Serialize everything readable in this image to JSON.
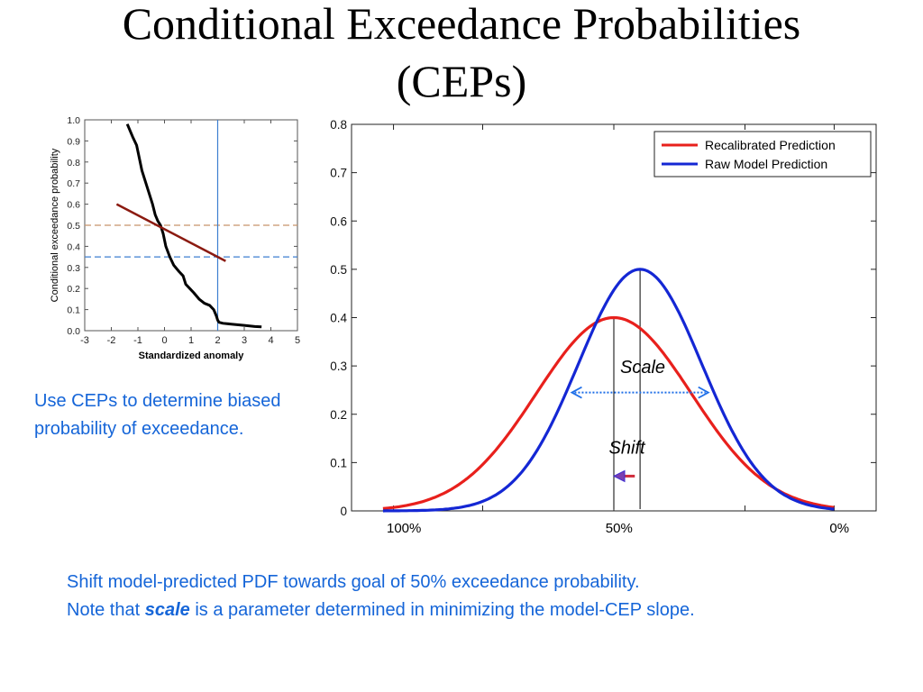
{
  "title": {
    "line1": "Conditional Exceedance Probabilities",
    "line2": "(CEPs)"
  },
  "captions": {
    "left": "Use CEPs to determine biased probability of exceedance.",
    "bottom_line1": "Shift model-predicted PDF towards goal of 50% exceedance probability.",
    "bottom_line2_prefix": "Note that ",
    "bottom_line2_emph": "scale",
    "bottom_line2_suffix": " is a parameter determined in minimizing the model-CEP slope."
  },
  "colors": {
    "title": "#000000",
    "caption": "#1565d8",
    "recalibrated": "#e8201c",
    "raw": "#1427d4",
    "cep_curve": "#000000",
    "regression": "#8b1a10",
    "hline_brown": "#c8956a",
    "hline_blue": "#3d7fd0",
    "vline_blue": "#3d7fd0"
  },
  "chart_data": [
    {
      "type": "line",
      "title": "",
      "xlabel": "Standardized anomaly",
      "ylabel": "Conditional exceedance probability",
      "xlim": [
        -3,
        5
      ],
      "ylim": [
        0,
        1
      ],
      "xticks": [
        -3,
        -2,
        -1,
        0,
        1,
        2,
        3,
        4,
        5
      ],
      "xtick_labels": [
        "-3",
        "-2",
        "-1",
        "0",
        "1",
        "2",
        "3",
        "4",
        "5"
      ],
      "yticks": [
        0,
        0.1,
        0.2,
        0.3,
        0.4,
        0.5,
        0.6,
        0.7,
        0.8,
        0.9,
        1.0
      ],
      "ytick_labels": [
        "0.0",
        "0.1",
        "0.2",
        "0.3",
        "0.4",
        "0.5",
        "0.6",
        "0.7",
        "0.8",
        "0.9",
        "1.0"
      ],
      "series": [
        {
          "role": "cep",
          "x": [
            -1.4,
            -1.2,
            -1.05,
            -0.95,
            -0.85,
            -0.75,
            -0.6,
            -0.45,
            -0.35,
            -0.25,
            -0.15,
            -0.05,
            0.05,
            0.2,
            0.35,
            0.55,
            0.7,
            0.8,
            0.95,
            1.1,
            1.3,
            1.5,
            1.7,
            1.85,
            1.95,
            2.0,
            2.05,
            2.2,
            2.6,
            3.0,
            3.4,
            3.65
          ],
          "y": [
            0.98,
            0.92,
            0.88,
            0.82,
            0.76,
            0.72,
            0.66,
            0.6,
            0.55,
            0.52,
            0.5,
            0.46,
            0.4,
            0.35,
            0.31,
            0.28,
            0.26,
            0.22,
            0.2,
            0.18,
            0.15,
            0.13,
            0.12,
            0.1,
            0.07,
            0.05,
            0.04,
            0.035,
            0.03,
            0.025,
            0.02,
            0.018
          ]
        },
        {
          "role": "regression",
          "x": [
            -1.8,
            2.3
          ],
          "y": [
            0.6,
            0.33
          ]
        }
      ],
      "hlines": [
        {
          "y": 0.5,
          "style": "dashed",
          "color": "hline_brown"
        },
        {
          "y": 0.35,
          "style": "dashed",
          "color": "hline_blue"
        }
      ],
      "vlines": [
        {
          "x": 2.0,
          "color": "vline_blue"
        }
      ]
    },
    {
      "type": "line",
      "title": "",
      "xlabel": "",
      "ylabel": "",
      "xlim": [
        0,
        100
      ],
      "ylim": [
        0,
        0.8
      ],
      "yticks": [
        0,
        0.1,
        0.2,
        0.3,
        0.4,
        0.5,
        0.6,
        0.7,
        0.8
      ],
      "ytick_labels": [
        "0",
        "0.1",
        "0.2",
        "0.3",
        "0.4",
        "0.5",
        "0.6",
        "0.7",
        "0.8"
      ],
      "xtick_positions": [
        8,
        25,
        50,
        75,
        92
      ],
      "bottom_labels": [
        {
          "x": 10,
          "text": "100%"
        },
        {
          "x": 51,
          "text": "50%"
        },
        {
          "x": 93,
          "text": "0%"
        }
      ],
      "legend": {
        "placement": "top-right",
        "entries": [
          "Recalibrated Prediction",
          "Raw Model Prediction"
        ]
      },
      "series": [
        {
          "name": "Recalibrated Prediction",
          "color_key": "recalibrated",
          "mean": 50,
          "sd": 14.8,
          "peak": 0.4,
          "xrange": [
            6,
            92
          ]
        },
        {
          "name": "Raw Model Prediction",
          "color_key": "raw",
          "mean": 55,
          "sd": 11.8,
          "peak": 0.5,
          "xrange": [
            6,
            92
          ]
        }
      ],
      "vlines": [
        {
          "x": 50,
          "y_top": 0.4
        },
        {
          "x": 55,
          "y_top": 0.5
        }
      ],
      "annotations": {
        "scale_label": "Scale",
        "shift_label": "Shift",
        "scale_arrow": {
          "x1": 42,
          "x2": 68,
          "y": 0.245
        },
        "shift_arrow": {
          "x_from": 54,
          "x_to": 50,
          "y": 0.072
        }
      }
    }
  ]
}
